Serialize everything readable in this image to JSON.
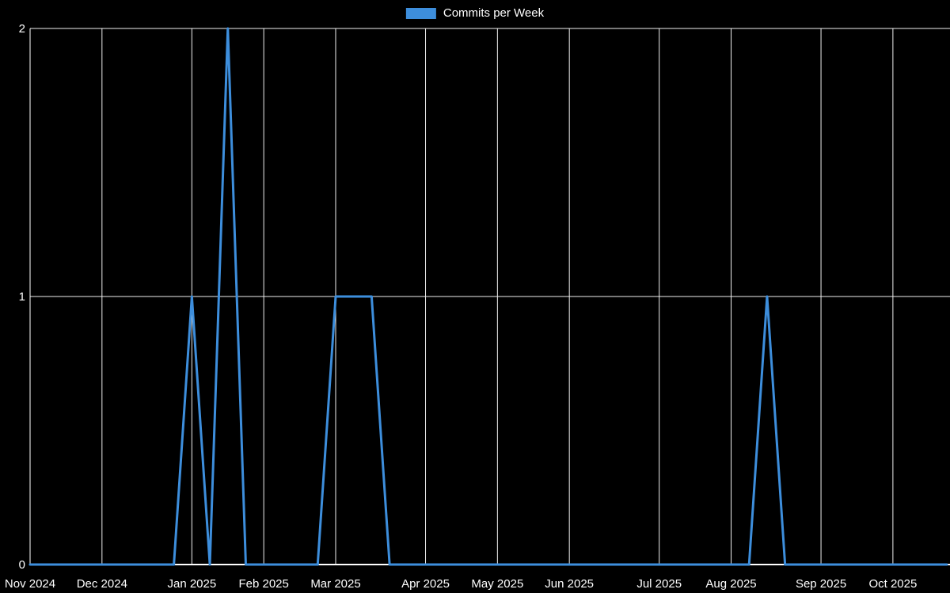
{
  "chart_data": {
    "type": "line",
    "title": "Commits per Week",
    "legend_label": "Commits per Week",
    "legend_position": "top-center",
    "xlabel": "",
    "ylabel": "",
    "x_unit": "week",
    "ylim": [
      0,
      2
    ],
    "y_ticks": [
      0,
      1,
      2
    ],
    "grid": true,
    "values": [
      0,
      0,
      0,
      0,
      0,
      0,
      0,
      0,
      0,
      1,
      0,
      2,
      0,
      0,
      0,
      0,
      0,
      1,
      1,
      1,
      0,
      0,
      0,
      0,
      0,
      0,
      0,
      0,
      0,
      0,
      0,
      0,
      0,
      0,
      0,
      0,
      0,
      0,
      0,
      0,
      0,
      1,
      0,
      0,
      0,
      0,
      0,
      0,
      0,
      0,
      0,
      0
    ],
    "x_ticks": [
      {
        "label": "Nov 2024",
        "week": 0
      },
      {
        "label": "Dec 2024",
        "week": 4
      },
      {
        "label": "Jan 2025",
        "week": 9
      },
      {
        "label": "Feb 2025",
        "week": 13
      },
      {
        "label": "Mar 2025",
        "week": 17
      },
      {
        "label": "Apr 2025",
        "week": 22
      },
      {
        "label": "May 2025",
        "week": 26
      },
      {
        "label": "Jun 2025",
        "week": 30
      },
      {
        "label": "Jul 2025",
        "week": 35
      },
      {
        "label": "Aug 2025",
        "week": 39
      },
      {
        "label": "Sep 2025",
        "week": 44
      },
      {
        "label": "Oct 2025",
        "week": 48
      }
    ],
    "colors": {
      "line": "#3d8edc",
      "grid": "#efefef",
      "axis": "#ffffff",
      "text": "#ffffff",
      "background": "#000000"
    }
  }
}
